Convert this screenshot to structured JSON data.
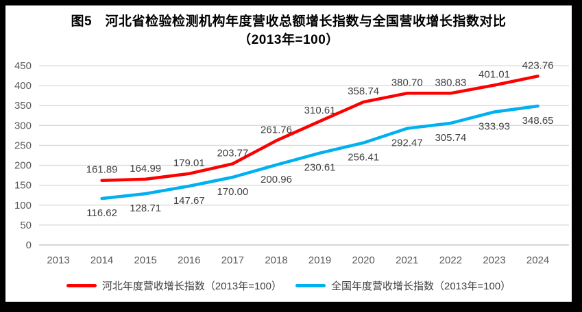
{
  "title": {
    "line1": "图5　河北省检验检测机构年度营收总额增长指数与全国营收增长指数对比",
    "line2": "（2013年=100）"
  },
  "colors": {
    "hebei_line": "#FF0000",
    "national_line": "#00B0F0",
    "gridline": "#D9D9D9",
    "zero_axis_line": "#BFBFBF",
    "tick_text": "#595959",
    "data_label_text": "#404040",
    "title_text": "#000000",
    "frame": "#000000",
    "background": "#FFFFFF"
  },
  "chart_data": {
    "type": "line",
    "title": "图5　河北省检验检测机构年度营收总额增长指数与全国营收增长指数对比（2013年=100）",
    "x_tick_labels": [
      "2013",
      "2014",
      "2015",
      "2016",
      "2017",
      "2018",
      "2019",
      "2020",
      "2021",
      "2022",
      "2023",
      "2024"
    ],
    "x": [
      2014,
      2015,
      2016,
      2017,
      2018,
      2019,
      2020,
      2021,
      2022,
      2023,
      2024
    ],
    "series": [
      {
        "id": "hebei",
        "name": "河北年度营收增长指数（2013年=100）",
        "color": "#FF0000",
        "label_position": "above",
        "values": [
          161.89,
          164.99,
          179.01,
          203.77,
          261.76,
          310.61,
          358.74,
          380.7,
          380.83,
          401.01,
          423.76
        ]
      },
      {
        "id": "national",
        "name": "全国年度营收增长指数（2013年=100）",
        "color": "#00B0F0",
        "label_position": "below",
        "values": [
          116.62,
          128.71,
          147.67,
          170.0,
          200.96,
          230.61,
          256.41,
          292.47,
          305.74,
          333.93,
          348.65
        ]
      }
    ],
    "y_ticks": [
      0,
      50,
      100,
      150,
      200,
      250,
      300,
      350,
      400,
      450
    ],
    "ylim": [
      0,
      450
    ],
    "xlabel": "",
    "ylabel": "",
    "grid": true,
    "legend_position": "bottom",
    "data_labels": true,
    "data_label_decimals": 2
  }
}
